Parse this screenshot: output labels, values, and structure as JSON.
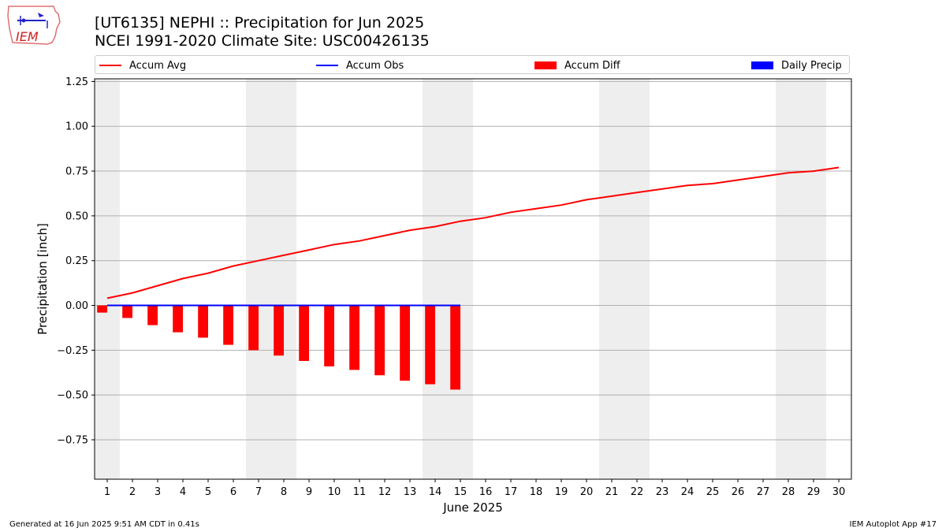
{
  "header": {
    "title_line1": "[UT6135] NEPHI :: Precipitation for Jun 2025",
    "title_line2": "NCEI 1991-2020 Climate Site: USC00426135"
  },
  "logo": {
    "text": "IEM"
  },
  "legend": {
    "accum_avg": "Accum Avg",
    "accum_obs": "Accum Obs",
    "accum_diff": "Accum Diff",
    "daily_precip": "Daily Precip"
  },
  "footer": {
    "generated": "Generated at 16 Jun 2025 9:51 AM CDT in 0.41s",
    "app": "IEM Autoplot App #17"
  },
  "colors": {
    "accum_avg": "#ff0000",
    "accum_obs": "#0000ff",
    "accum_diff": "#ff0000",
    "daily_precip": "#0000ff",
    "weekend_shade": "#eeeeee",
    "grid": "#b0b0b0"
  },
  "chart_data": {
    "type": "line",
    "xlabel": "June 2025",
    "ylabel": "Precipitation [inch]",
    "xlim": [
      0.5,
      30.5
    ],
    "ylim": [
      -0.97,
      1.265
    ],
    "x_ticks": [
      1,
      2,
      3,
      4,
      5,
      6,
      7,
      8,
      9,
      10,
      11,
      12,
      13,
      14,
      15,
      16,
      17,
      18,
      19,
      20,
      21,
      22,
      23,
      24,
      25,
      26,
      27,
      28,
      29,
      30
    ],
    "y_ticks": [
      -0.75,
      -0.5,
      -0.25,
      0.0,
      0.25,
      0.5,
      0.75,
      1.0,
      1.25
    ],
    "y_tick_labels": [
      "−0.75",
      "−0.50",
      "−0.25",
      "0.00",
      "0.25",
      "0.50",
      "0.75",
      "1.00",
      "1.25"
    ],
    "grid": "horizontal",
    "weekend_days": [
      1,
      7,
      8,
      14,
      15,
      21,
      22,
      28,
      29
    ],
    "series": [
      {
        "name": "Accum Avg",
        "type": "line",
        "x": [
          1,
          2,
          3,
          4,
          5,
          6,
          7,
          8,
          9,
          10,
          11,
          12,
          13,
          14,
          15,
          16,
          17,
          18,
          19,
          20,
          21,
          22,
          23,
          24,
          25,
          26,
          27,
          28,
          29,
          30
        ],
        "values": [
          0.04,
          0.07,
          0.11,
          0.15,
          0.18,
          0.22,
          0.25,
          0.28,
          0.31,
          0.34,
          0.36,
          0.39,
          0.42,
          0.44,
          0.47,
          0.49,
          0.52,
          0.54,
          0.56,
          0.59,
          0.61,
          0.63,
          0.65,
          0.67,
          0.68,
          0.7,
          0.72,
          0.74,
          0.75,
          0.77
        ]
      },
      {
        "name": "Accum Obs",
        "type": "line",
        "x": [
          1,
          2,
          3,
          4,
          5,
          6,
          7,
          8,
          9,
          10,
          11,
          12,
          13,
          14,
          15
        ],
        "values": [
          0,
          0,
          0,
          0,
          0,
          0,
          0,
          0,
          0,
          0,
          0,
          0,
          0,
          0,
          0
        ]
      },
      {
        "name": "Accum Diff",
        "type": "bar",
        "x": [
          1,
          2,
          3,
          4,
          5,
          6,
          7,
          8,
          9,
          10,
          11,
          12,
          13,
          14,
          15
        ],
        "values": [
          -0.04,
          -0.07,
          -0.11,
          -0.15,
          -0.18,
          -0.22,
          -0.25,
          -0.28,
          -0.31,
          -0.34,
          -0.36,
          -0.39,
          -0.42,
          -0.44,
          -0.47
        ]
      },
      {
        "name": "Daily Precip",
        "type": "bar",
        "x": [
          1,
          2,
          3,
          4,
          5,
          6,
          7,
          8,
          9,
          10,
          11,
          12,
          13,
          14,
          15
        ],
        "values": [
          0,
          0,
          0,
          0,
          0,
          0,
          0,
          0,
          0,
          0,
          0,
          0,
          0,
          0,
          0
        ]
      }
    ]
  }
}
